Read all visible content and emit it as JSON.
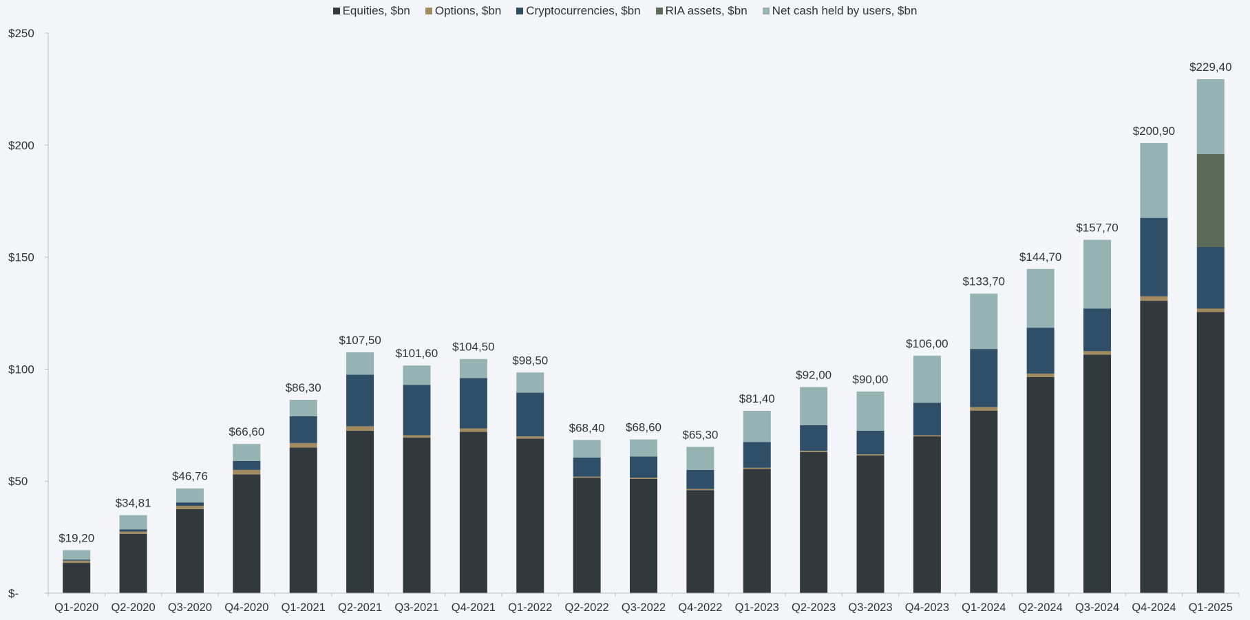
{
  "chart_data": {
    "type": "bar",
    "stacked": true,
    "title": "",
    "xlabel": "",
    "ylabel": "",
    "ylim": [
      0,
      250
    ],
    "yticks": [
      0,
      50,
      100,
      150,
      200,
      250
    ],
    "ytick_labels": [
      "$-",
      "$50",
      "$100",
      "$150",
      "$200",
      "$250"
    ],
    "legend_position": "top-center",
    "categories": [
      "Q1-2020",
      "Q2-2020",
      "Q3-2020",
      "Q4-2020",
      "Q1-2021",
      "Q2-2021",
      "Q3-2021",
      "Q4-2021",
      "Q1-2022",
      "Q2-2022",
      "Q3-2022",
      "Q4-2022",
      "Q1-2023",
      "Q2-2023",
      "Q3-2023",
      "Q4-2023",
      "Q1-2024",
      "Q2-2024",
      "Q3-2024",
      "Q4-2024",
      "Q1-2025"
    ],
    "series": [
      {
        "name": "Equities, $bn",
        "color": "#32393d",
        "values": [
          13.5,
          26.5,
          37.5,
          53,
          65,
          72.5,
          69.5,
          72,
          69,
          51.5,
          51,
          46,
          55.5,
          63,
          61.5,
          70,
          81.5,
          96.5,
          106.5,
          130.5,
          125.5
        ]
      },
      {
        "name": "Options, $bn",
        "color": "#a48a5f",
        "values": [
          1,
          1,
          1.5,
          2,
          2,
          2,
          1,
          1.5,
          1,
          0.5,
          0.5,
          0.5,
          0.5,
          0.5,
          0.5,
          0.5,
          1.5,
          1.5,
          1.5,
          2,
          1.5
        ]
      },
      {
        "name": "Cryptocurrencies, $bn",
        "color": "#2f4e68",
        "values": [
          0.5,
          1,
          1.5,
          4,
          12,
          23,
          22.5,
          22.5,
          19.5,
          8.5,
          9.5,
          8.5,
          11.5,
          11.5,
          10.5,
          14.5,
          26,
          20.5,
          19,
          35,
          27.5
        ]
      },
      {
        "name": "RIA assets, $bn",
        "color": "#5b6b55",
        "values": [
          0,
          0,
          0,
          0,
          0,
          0,
          0,
          0,
          0,
          0,
          0,
          0,
          0,
          0,
          0,
          0,
          0,
          0,
          0,
          0,
          41.5
        ]
      },
      {
        "name": "Net cash held by users, $bn",
        "color": "#96b3b4",
        "values": [
          4.2,
          6.31,
          6.26,
          7.6,
          7.3,
          10,
          8.6,
          8.5,
          9,
          7.9,
          7.6,
          10.3,
          13.9,
          17,
          17.5,
          21,
          24.7,
          26.2,
          30.7,
          33.4,
          33.4
        ]
      }
    ],
    "totals": [
      19.2,
      34.81,
      46.76,
      66.6,
      86.3,
      107.5,
      101.6,
      104.5,
      98.5,
      68.4,
      68.6,
      65.3,
      81.4,
      92,
      90,
      106,
      133.7,
      144.7,
      157.7,
      200.9,
      229.4
    ],
    "total_labels": [
      "$19,20",
      "$34,81",
      "$46,76",
      "$66,60",
      "$86,30",
      "$107,50",
      "$101,60",
      "$104,50",
      "$98,50",
      "$68,40",
      "$68,60",
      "$65,30",
      "$81,40",
      "$92,00",
      "$90,00",
      "$106,00",
      "$133,70",
      "$144,70",
      "$157,70",
      "$200,90",
      "$229,40"
    ]
  }
}
